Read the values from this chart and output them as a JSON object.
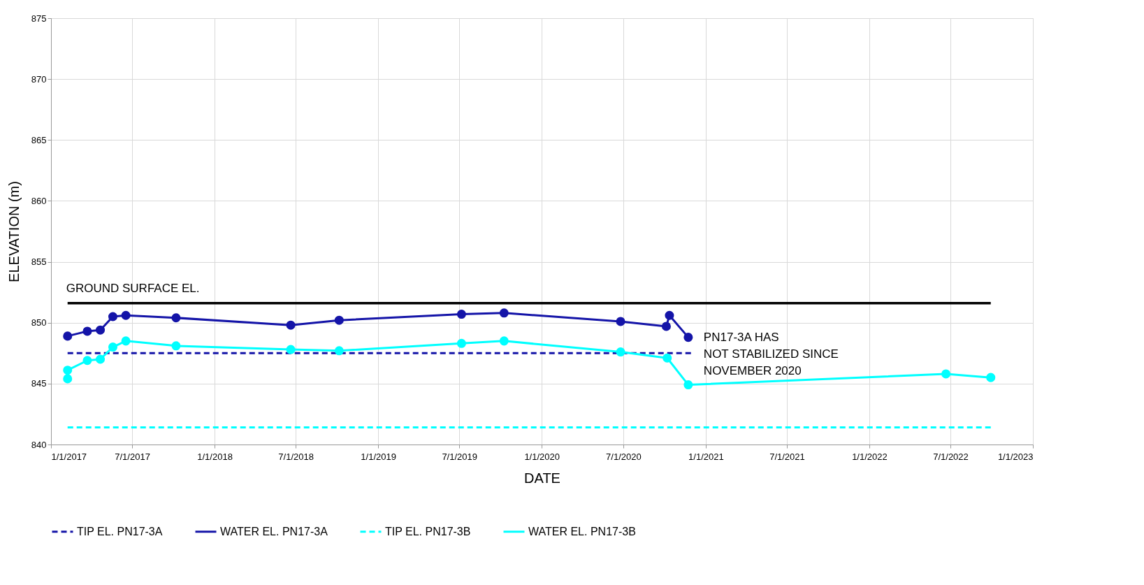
{
  "chart_data": {
    "type": "line",
    "xlabel": "DATE",
    "ylabel": "ELEVATION (m)",
    "xlim": [
      "2017-01-01",
      "2023-01-01"
    ],
    "xticks": [
      {
        "value": "2017-01-01",
        "label": "1/1/2017"
      },
      {
        "value": "2017-07-01",
        "label": "7/1/2017"
      },
      {
        "value": "2018-01-01",
        "label": "1/1/2018"
      },
      {
        "value": "2018-07-01",
        "label": "7/1/2018"
      },
      {
        "value": "2019-01-01",
        "label": "1/1/2019"
      },
      {
        "value": "2019-07-01",
        "label": "7/1/2019"
      },
      {
        "value": "2020-01-01",
        "label": "1/1/2020"
      },
      {
        "value": "2020-07-01",
        "label": "7/1/2020"
      },
      {
        "value": "2021-01-01",
        "label": "1/1/2021"
      },
      {
        "value": "2021-07-01",
        "label": "7/1/2021"
      },
      {
        "value": "2022-01-01",
        "label": "1/1/2022"
      },
      {
        "value": "2022-07-01",
        "label": "7/1/2022"
      },
      {
        "value": "2023-01-01",
        "label": "1/1/2023"
      }
    ],
    "ylim": [
      840,
      875
    ],
    "yticks": [
      840,
      845,
      850,
      855,
      860,
      865,
      870,
      875
    ],
    "grid": true,
    "legend": "bottom",
    "series": [
      {
        "name": "TIP EL. PN17-3A",
        "color": "#1414a8",
        "line_style": "dashed",
        "marker": "none",
        "x": [
          "2017-02-07",
          "2020-11-30"
        ],
        "values": [
          847.5,
          847.5
        ]
      },
      {
        "name": "WATER EL. PN17-3A",
        "color": "#1414a8",
        "line_style": "solid",
        "marker": "circle",
        "x": [
          "2017-02-07",
          "2017-03-23",
          "2017-04-21",
          "2017-05-19",
          "2017-06-17",
          "2017-10-07",
          "2018-06-20",
          "2018-10-06",
          "2019-07-06",
          "2019-10-09",
          "2020-06-25",
          "2020-10-05",
          "2020-10-12",
          "2020-11-23"
        ],
        "values": [
          848.9,
          849.3,
          849.4,
          850.5,
          850.6,
          850.4,
          849.8,
          850.2,
          850.7,
          850.8,
          850.1,
          849.7,
          850.6,
          848.8
        ]
      },
      {
        "name": "TIP EL. PN17-3B",
        "color": "#00ffff",
        "line_style": "dashed",
        "marker": "none",
        "x": [
          "2017-02-07",
          "2022-09-29"
        ],
        "values": [
          841.4,
          841.4
        ]
      },
      {
        "name": "WATER EL. PN17-3B",
        "color": "#00ffff",
        "line_style": "solid",
        "marker": "circle",
        "x": [
          "2017-02-07",
          "2017-02-07",
          "2017-03-23",
          "2017-04-21",
          "2017-05-19",
          "2017-06-17",
          "2017-10-07",
          "2018-06-20",
          "2018-10-06",
          "2019-07-06",
          "2019-10-09",
          "2020-06-25",
          "2020-10-07",
          "2020-11-23",
          "2022-06-21",
          "2022-09-29"
        ],
        "values": [
          845.4,
          846.1,
          846.9,
          847.0,
          848.0,
          848.5,
          848.1,
          847.8,
          847.7,
          848.3,
          848.5,
          847.6,
          847.1,
          844.9,
          845.8,
          845.5
        ]
      },
      {
        "color": "#000000",
        "line_style": "solid",
        "marker": "none",
        "x": [
          "2017-02-07",
          "2022-09-29"
        ],
        "values": [
          851.6,
          851.6
        ]
      }
    ],
    "annotations": [
      {
        "text": "GROUND SURFACE EL.",
        "x": "2017-02-07",
        "y": 851.6
      },
      {
        "text": "PN17-3A HAS\nNOT STABILIZED SINCE\nNOVEMBER 2020",
        "x": "2020-11-23",
        "y": 848.8
      }
    ]
  }
}
